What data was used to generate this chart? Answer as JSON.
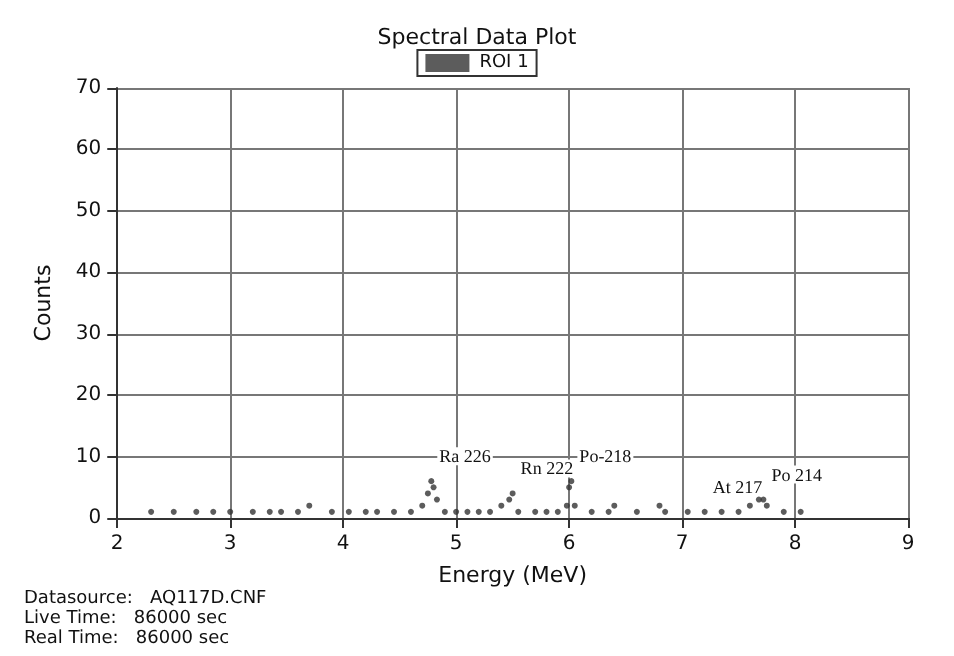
{
  "chart_data": {
    "type": "scatter",
    "title": "Spectral Data Plot",
    "xlabel": "Energy (MeV)",
    "ylabel": "Counts",
    "xlim": [
      2,
      9
    ],
    "xticks": [
      2,
      3,
      4,
      5,
      6,
      7,
      8,
      9
    ],
    "ylim": [
      0,
      70
    ],
    "yticks": [
      0,
      10,
      20,
      30,
      40,
      50,
      60,
      70
    ],
    "grid": true,
    "legend": "top",
    "marker": "circle",
    "series": [
      {
        "name": "ROI 1",
        "color": "#333333",
        "x": [
          2.3,
          2.5,
          2.7,
          2.85,
          3.0,
          3.2,
          3.35,
          3.45,
          3.6,
          3.7,
          3.9,
          4.05,
          4.2,
          4.3,
          4.45,
          4.6,
          4.7,
          4.75,
          4.78,
          4.8,
          4.83,
          4.9,
          5.0,
          5.1,
          5.2,
          5.3,
          5.4,
          5.47,
          5.5,
          5.55,
          5.7,
          5.8,
          5.9,
          5.98,
          6.0,
          6.02,
          6.05,
          6.2,
          6.35,
          6.4,
          6.6,
          6.8,
          6.85,
          7.05,
          7.2,
          7.35,
          7.5,
          7.6,
          7.68,
          7.72,
          7.75,
          7.9,
          8.05
        ],
        "values": [
          1,
          1,
          1,
          1,
          1,
          1,
          1,
          1,
          1,
          2,
          1,
          1,
          1,
          1,
          1,
          1,
          2,
          4,
          6,
          5,
          3,
          1,
          1,
          1,
          1,
          1,
          2,
          3,
          4,
          1,
          1,
          1,
          1,
          2,
          5,
          6,
          2,
          1,
          1,
          2,
          1,
          2,
          1,
          1,
          1,
          1,
          1,
          2,
          3,
          3,
          2,
          1,
          1
        ]
      }
    ],
    "annotations": [
      {
        "text": "Ra 226",
        "x": 4.78,
        "y": 6
      },
      {
        "text": "Rn 222",
        "x": 5.5,
        "y": 4
      },
      {
        "text": "Po-218",
        "x": 6.02,
        "y": 6
      },
      {
        "text": "At 217",
        "x": 7.2,
        "y": 1
      },
      {
        "text": "Po 214",
        "x": 7.72,
        "y": 3
      },
      "Datasource:   AQ117D.CNF",
      "Live Time:   86000 sec",
      "Real Time:   86000 sec"
    ]
  }
}
